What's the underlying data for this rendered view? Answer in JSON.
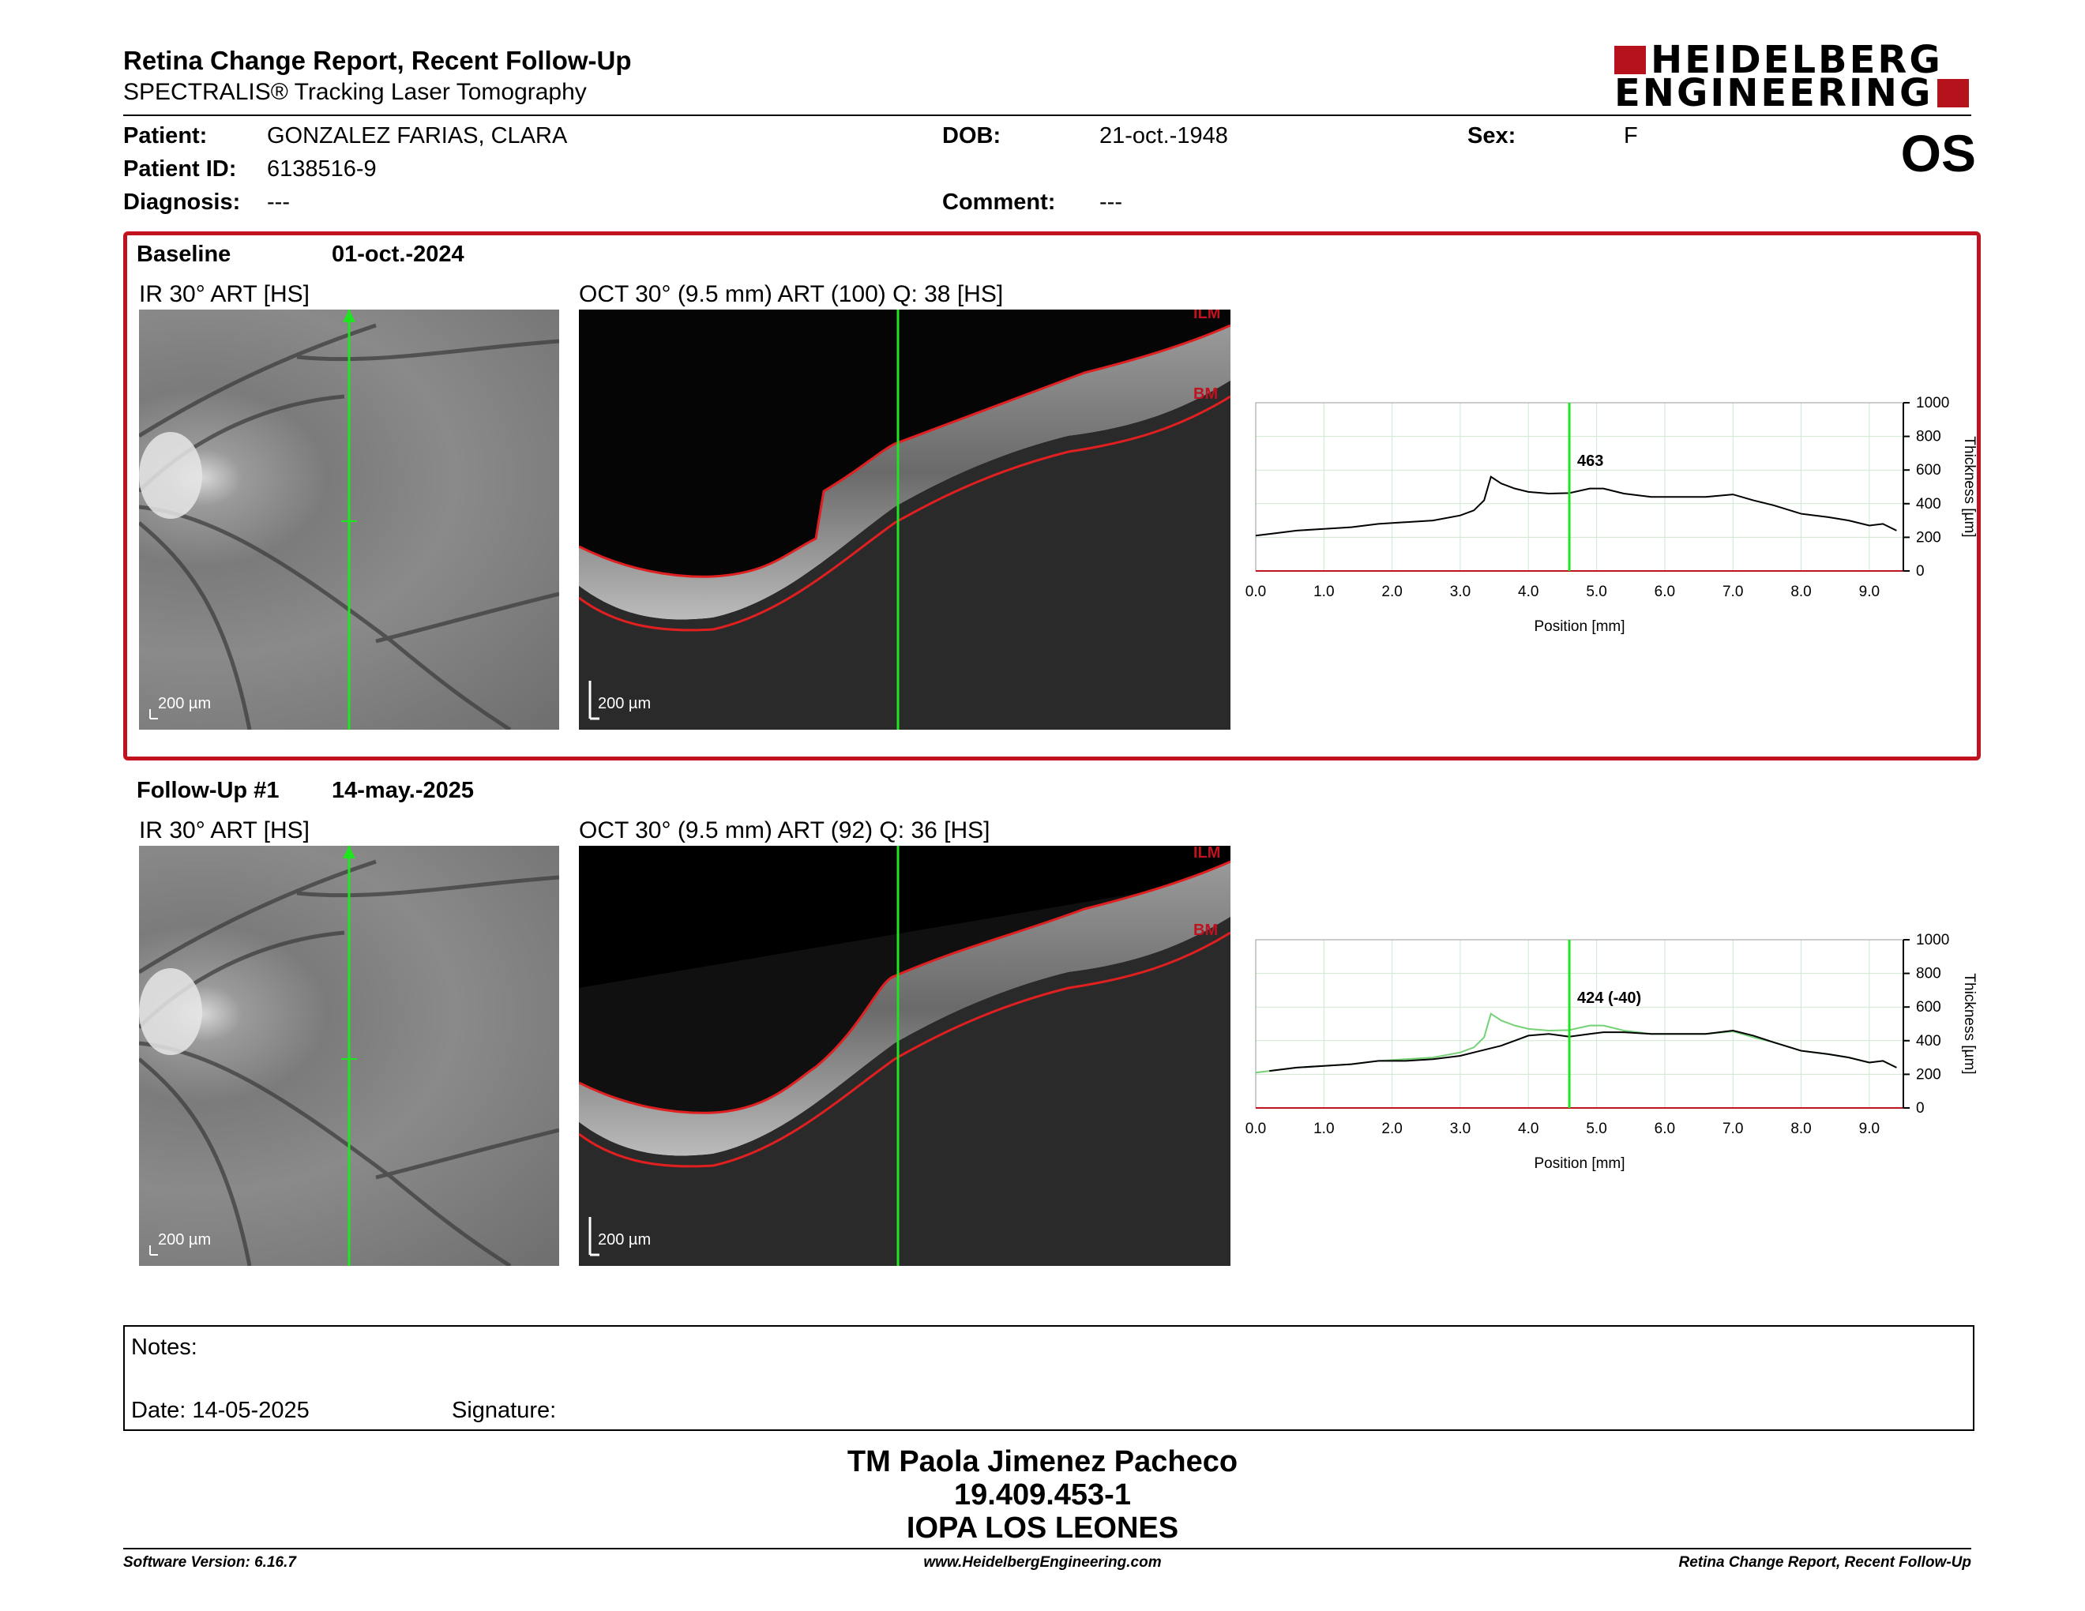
{
  "header": {
    "title": "Retina Change Report, Recent Follow-Up",
    "subtitle": "SPECTRALIS® Tracking Laser Tomography",
    "logo_line1": "HEIDELBERG",
    "logo_line2": "ENGINEERING",
    "eye": "OS"
  },
  "patient": {
    "patient_label": "Patient:",
    "patient_value": "GONZALEZ FARIAS, CLARA",
    "id_label": "Patient ID:",
    "id_value": "6138516-9",
    "diagnosis_label": "Diagnosis:",
    "diagnosis_value": "---",
    "dob_label": "DOB:",
    "dob_value": "21-oct.-1948",
    "comment_label": "Comment:",
    "comment_value": "---",
    "sex_label": "Sex:",
    "sex_value": "F"
  },
  "baseline": {
    "label": "Baseline",
    "date": "01-oct.-2024",
    "ir_title": "IR 30° ART [HS]",
    "oct_title": "OCT 30° (9.5 mm) ART (100) Q: 38 [HS]",
    "scale": "200 µm",
    "ilm": "ILM",
    "bm": "BM",
    "marker_value": "463"
  },
  "followup": {
    "label": "Follow-Up #1",
    "date": "14-may.-2025",
    "ir_title": "IR 30° ART [HS]",
    "oct_title": "OCT 30° (9.5 mm) ART (92) Q: 36 [HS]",
    "scale": "200 µm",
    "ilm": "ILM",
    "bm": "BM",
    "marker_value": "424 (-40)"
  },
  "chart_data": [
    {
      "type": "line",
      "xlabel": "Position [mm]",
      "ylabel": "Thickness [µm]",
      "xlim": [
        0,
        9.5
      ],
      "ylim": [
        0,
        1000
      ],
      "xticks": [
        "0.0",
        "1.0",
        "2.0",
        "3.0",
        "4.0",
        "5.0",
        "6.0",
        "7.0",
        "8.0",
        "9.0"
      ],
      "yticks": [
        "0",
        "200",
        "400",
        "600",
        "800",
        "1000"
      ],
      "marker_x": 4.6,
      "marker_label": "463",
      "series": [
        {
          "x": [
            0.0,
            0.3,
            0.6,
            1.0,
            1.4,
            1.8,
            2.2,
            2.6,
            3.0,
            3.2,
            3.35,
            3.45,
            3.6,
            3.8,
            4.0,
            4.3,
            4.6,
            4.9,
            5.1,
            5.4,
            5.8,
            6.2,
            6.6,
            7.0,
            7.3,
            7.6,
            8.0,
            8.4,
            8.7,
            9.0,
            9.2,
            9.4
          ],
          "y": [
            210,
            225,
            240,
            250,
            260,
            280,
            290,
            300,
            330,
            360,
            420,
            560,
            520,
            490,
            470,
            460,
            463,
            490,
            490,
            460,
            440,
            440,
            440,
            455,
            420,
            390,
            340,
            320,
            300,
            270,
            280,
            240
          ]
        }
      ]
    },
    {
      "type": "line",
      "xlabel": "Position [mm]",
      "ylabel": "Thickness [µm]",
      "xlim": [
        0,
        9.5
      ],
      "ylim": [
        0,
        1000
      ],
      "xticks": [
        "0.0",
        "1.0",
        "2.0",
        "3.0",
        "4.0",
        "5.0",
        "6.0",
        "7.0",
        "8.0",
        "9.0"
      ],
      "yticks": [
        "0",
        "200",
        "400",
        "600",
        "800",
        "1000"
      ],
      "marker_x": 4.6,
      "marker_label": "424 (-40)",
      "series": [
        {
          "x": [
            0.2,
            0.6,
            1.0,
            1.4,
            1.8,
            2.2,
            2.6,
            3.0,
            3.2,
            3.4,
            3.6,
            3.8,
            4.0,
            4.3,
            4.6,
            4.9,
            5.1,
            5.4,
            5.8,
            6.2,
            6.6,
            7.0,
            7.3,
            7.6,
            8.0,
            8.4,
            8.7,
            9.0,
            9.2,
            9.4
          ],
          "y": [
            220,
            240,
            250,
            260,
            280,
            280,
            290,
            310,
            330,
            350,
            370,
            400,
            430,
            440,
            424,
            440,
            450,
            450,
            440,
            440,
            440,
            460,
            430,
            390,
            340,
            320,
            300,
            270,
            280,
            240
          ]
        }
      ]
    }
  ],
  "notes": {
    "notes_label": "Notes:",
    "date_label": "Date: 14-05-2025",
    "signature_label": "Signature:"
  },
  "signature_block": {
    "name": "TM Paola Jimenez Pacheco",
    "rut": "19.409.453-1",
    "institution": "IOPA LOS LEONES"
  },
  "footer": {
    "software": "Software Version: 6.16.7",
    "website": "www.HeidelbergEngineering.com",
    "report": "Retina Change Report, Recent Follow-Up"
  }
}
